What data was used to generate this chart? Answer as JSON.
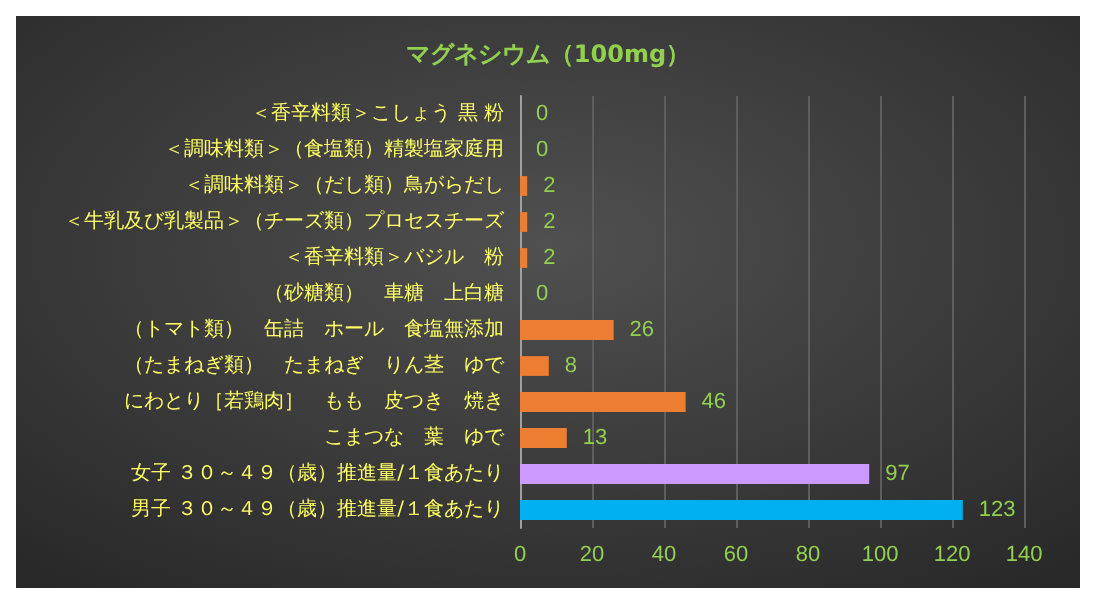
{
  "chart_data": {
    "type": "bar",
    "orientation": "horizontal",
    "title": "マグネシウム（100mg）",
    "categories": [
      "＜香辛料類＞こしょう 黒 粉",
      "＜調味料類＞（食塩類）精製塩家庭用",
      "＜調味料類＞（だし類）鳥がらだし",
      "＜牛乳及び乳製品＞（チーズ類）プロセスチーズ",
      "＜香辛料類＞バジル　粉",
      "（砂糖類）　車糖　上白糖",
      "（トマト類）　缶詰　ホール　食塩無添加",
      "（たまねぎ類）　たまねぎ　りん茎　ゆで",
      "にわとり［若鶏肉］　もも　皮つき　焼き",
      "こまつな　葉　ゆで",
      "女子 ３０～４９（歳）推進量/１食あたり",
      "男子 ３０～４９（歳）推進量/１食あたり"
    ],
    "values": [
      0,
      0,
      2,
      2,
      2,
      0,
      26,
      8,
      46,
      13,
      97,
      123
    ],
    "colors": [
      "#ed7d31",
      "#ed7d31",
      "#ed7d31",
      "#ed7d31",
      "#ed7d31",
      "#ed7d31",
      "#ed7d31",
      "#ed7d31",
      "#ed7d31",
      "#ed7d31",
      "#cc99ff",
      "#00b0f0"
    ],
    "xlim": [
      0,
      140
    ],
    "xticks": [
      0,
      20,
      40,
      60,
      80,
      100,
      120,
      140
    ],
    "grid": "x",
    "data_labels": true
  }
}
